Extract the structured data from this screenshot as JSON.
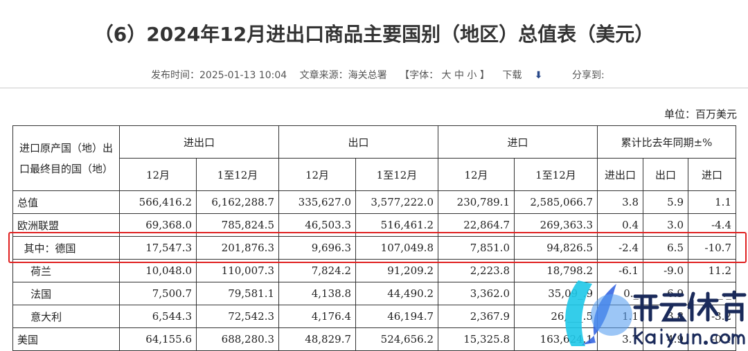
{
  "title": "（6）2024年12月进出口商品主要国别（地区）总值表（美元）",
  "meta": {
    "publish": "发布时间：2025-01-13 10:04",
    "source": "文章来源：海关总署",
    "font": "【字体：  大  中  小 】",
    "download": "下载",
    "share": "分享到:"
  },
  "unit": "单位：百万美元",
  "headers": {
    "country": "进口原产国（地）出口最终目的国（地）",
    "total": "进出口",
    "export": "出口",
    "import": "进口",
    "yoy": "累计比去年同期±%",
    "dec": "12月",
    "ytd": "1至12月",
    "yoy_total": "进出口",
    "yoy_export": "出口",
    "yoy_import": "进口"
  },
  "rows": [
    [
      "总值",
      "566,416.2",
      "6,162,288.7",
      "335,627.0",
      "3,577,222.0",
      "230,789.1",
      "2,585,066.7",
      "3.8",
      "5.9",
      "1.1"
    ],
    [
      "欧洲联盟",
      "69,368.0",
      "785,824.5",
      "46,503.3",
      "516,461.2",
      "22,864.7",
      "269,363.3",
      "0.4",
      "3.0",
      "-4.4"
    ],
    [
      "  其中：德国",
      "17,547.3",
      "201,876.3",
      "9,696.3",
      "107,049.8",
      "7,851.0",
      "94,826.5",
      "-2.4",
      "6.5",
      "-10.7"
    ],
    [
      "    荷兰",
      "10,048.0",
      "110,007.3",
      "7,824.2",
      "91,209.2",
      "2,223.8",
      "18,798.2",
      "-6.1",
      "-9.0",
      "11.2"
    ],
    [
      "    法国",
      "7,500.7",
      "79,581.1",
      "4,138.8",
      "44,490.2",
      "3,362.0",
      "35,09_.9",
      "0._",
      "6.9",
      "_._"
    ],
    [
      "    意大利",
      "6,544.3",
      "72,542.3",
      "4,176.4",
      "46,194.7",
      "2,367.9",
      "26,___.5",
      "1.1",
      "3.8",
      "-3.2"
    ],
    [
      "美国",
      "64,155.6",
      "688,280.3",
      "48,829.7",
      "524,656.2",
      "15,325.8",
      "163,624.1",
      "3.7",
      "4.9",
      "-0.1"
    ]
  ],
  "watermark": {
    "brand": "开云体育",
    "domain": "kaiyun.com",
    "colors": [
      "#1ec8e8",
      "#2a5de0",
      "#1a2a5a"
    ]
  },
  "highlight_color": "#e02020"
}
